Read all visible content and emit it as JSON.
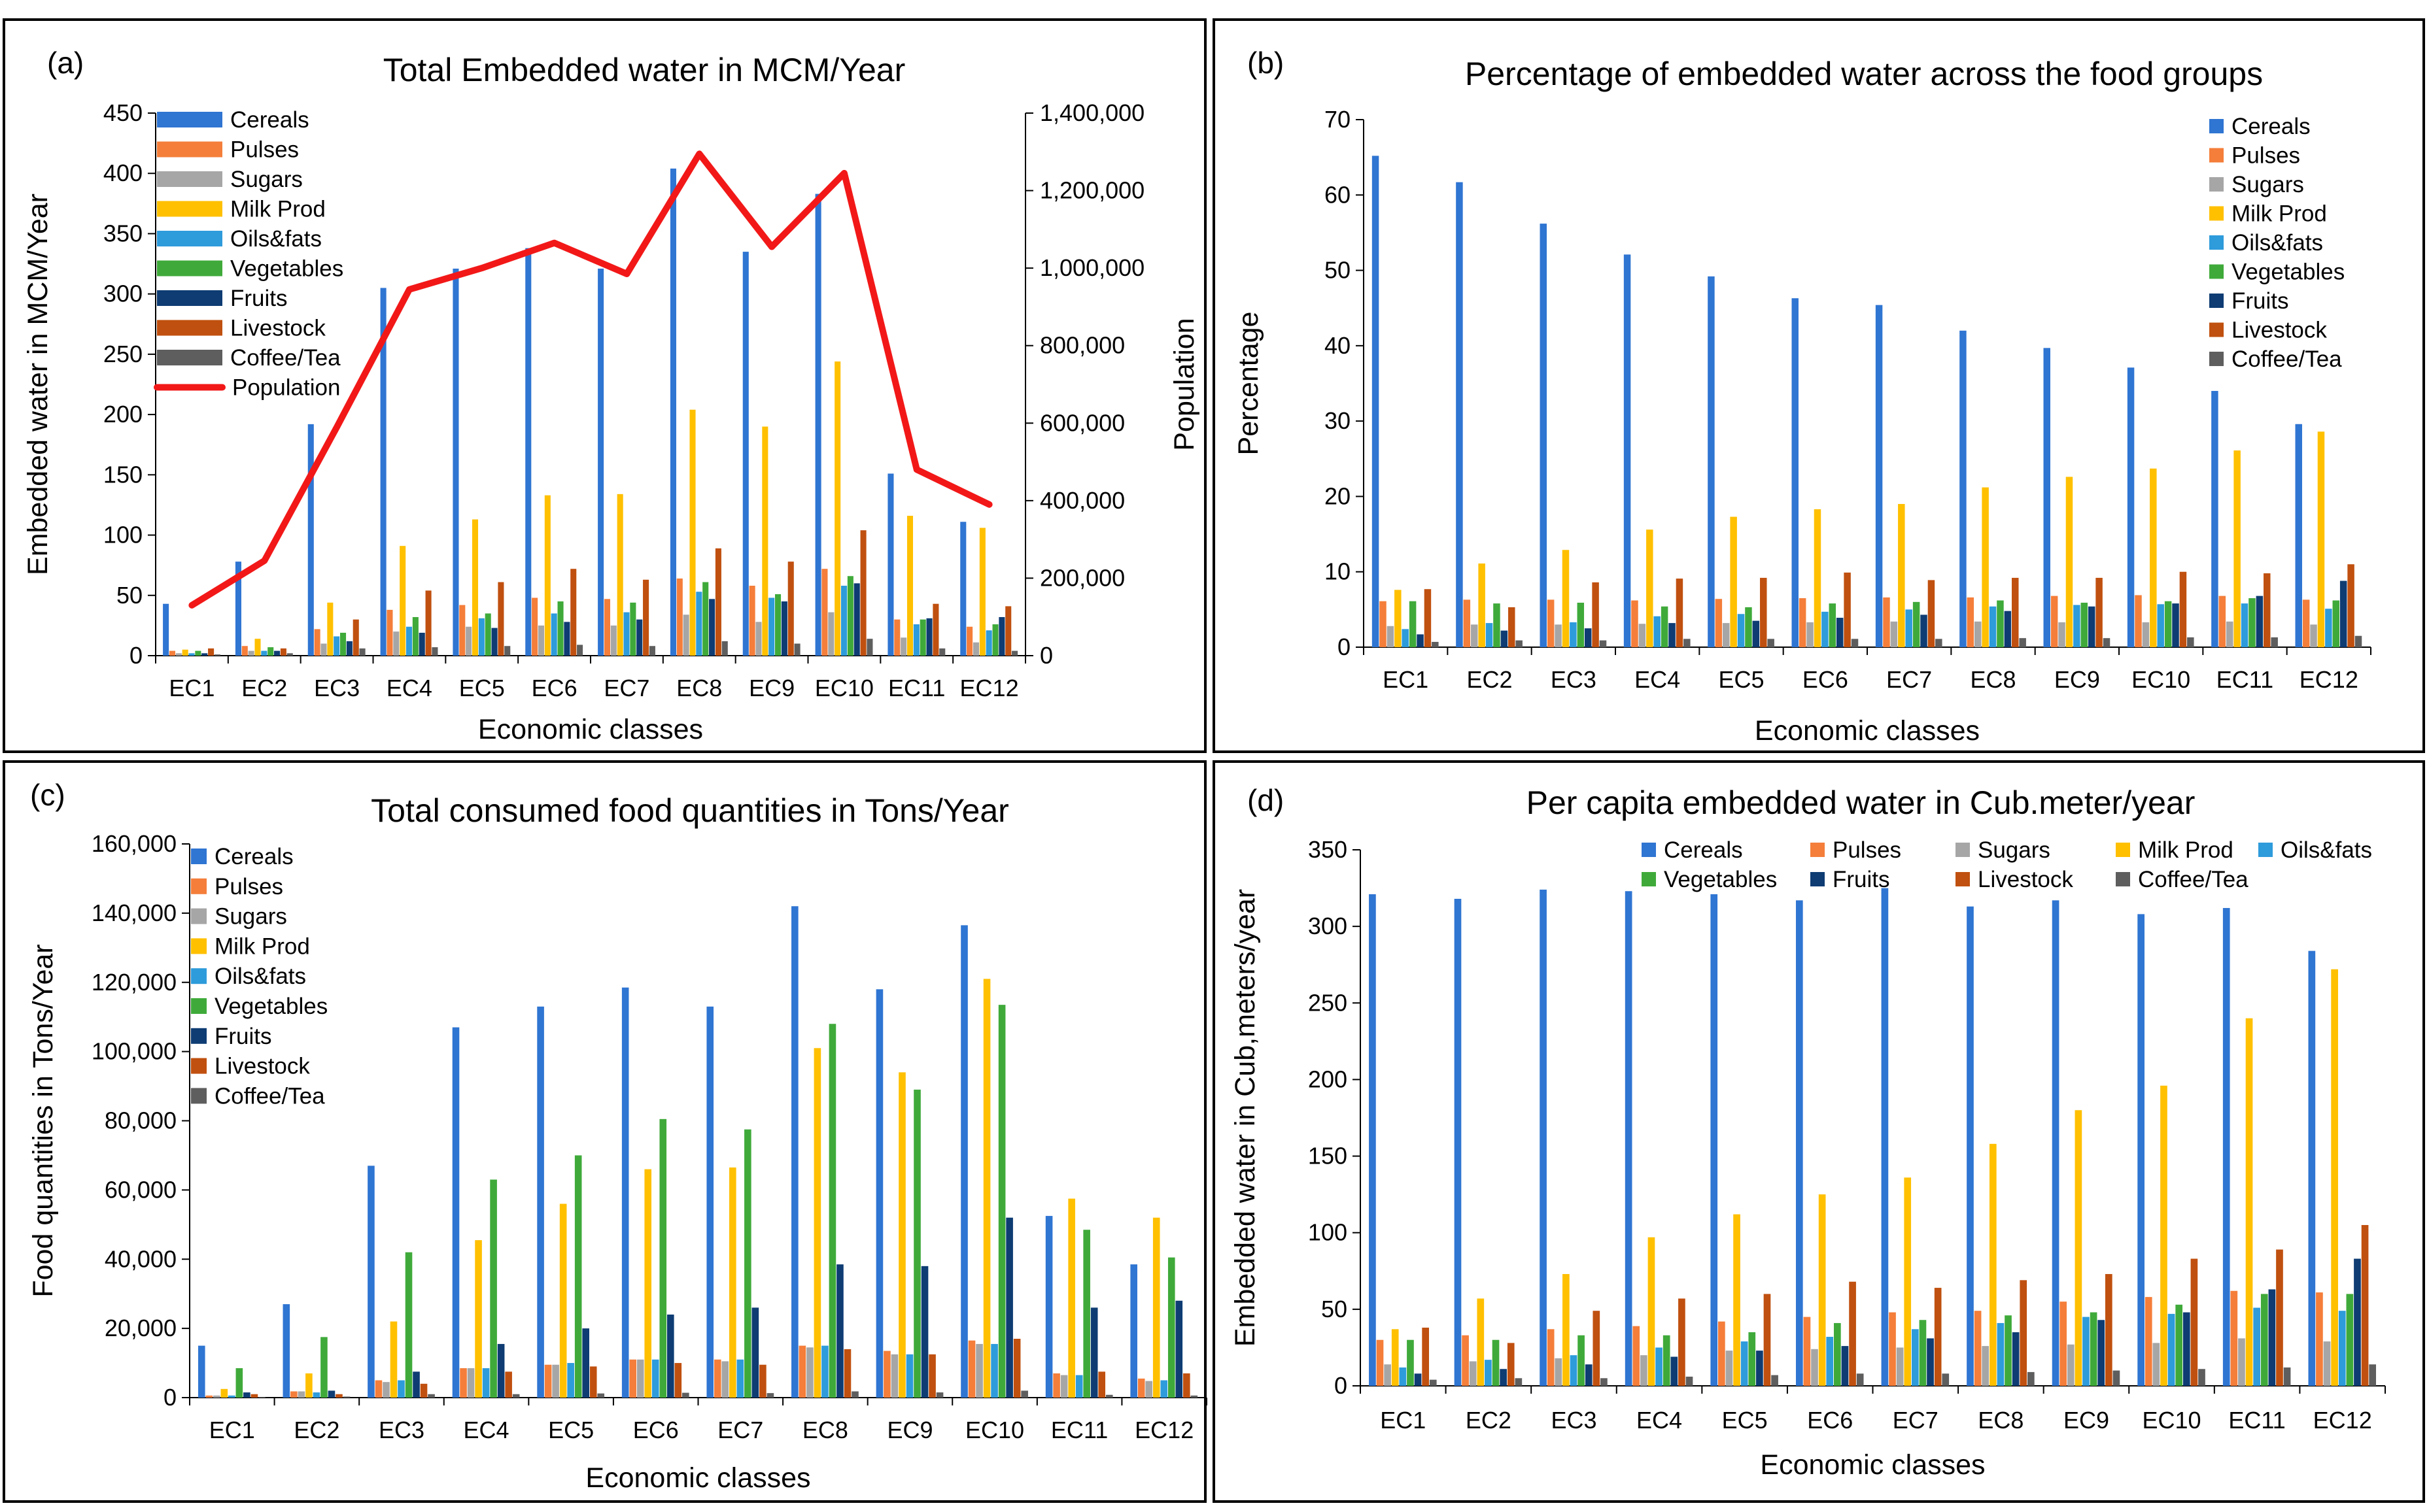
{
  "colors": {
    "Cereals": "#2F75D2",
    "Pulses": "#F47E3A",
    "Sugars": "#A6A6A6",
    "Milk Prod": "#FFC000",
    "Oils&fats": "#2E9BDB",
    "Vegetables": "#3FAA3A",
    "Fruits": "#0E3C73",
    "Livestock": "#C0500F",
    "Coffee/Tea": "#5E5E5E",
    "Population": "#F21818"
  },
  "chart_data": [
    {
      "id": "a",
      "panel_label": "(a)",
      "type": "bar+line",
      "title": "Total Embedded water in MCM/Year",
      "xlabel": "Economic classes",
      "ylabel": "Embedded water in MCM/Year",
      "y2label": "Population",
      "categories": [
        "EC1",
        "EC2",
        "EC3",
        "EC4",
        "EC5",
        "EC6",
        "EC7",
        "EC8",
        "EC9",
        "EC10",
        "EC11",
        "EC12"
      ],
      "ylim": [
        0,
        450
      ],
      "yticks": [
        "0",
        "50",
        "100",
        "150",
        "200",
        "250",
        "300",
        "350",
        "400",
        "450"
      ],
      "y2lim": [
        0,
        1400000
      ],
      "y2ticks": [
        "0",
        "200,000",
        "400,000",
        "600,000",
        "800,000",
        "1,000,000",
        "1,200,000",
        "1,400,000"
      ],
      "legend": [
        "Cereals",
        "Pulses",
        "Sugars",
        "Milk Prod",
        "Oils&fats",
        "Vegetables",
        "Fruits",
        "Livestock",
        "Coffee/Tea",
        "Population"
      ],
      "series": [
        {
          "name": "Cereals",
          "values": [
            43,
            78,
            192,
            305,
            321,
            338,
            321,
            404,
            335,
            383,
            151,
            111
          ]
        },
        {
          "name": "Pulses",
          "values": [
            4,
            8,
            22,
            38,
            42,
            48,
            47,
            64,
            58,
            72,
            30,
            24
          ]
        },
        {
          "name": "Sugars",
          "values": [
            2,
            4,
            10,
            20,
            24,
            25,
            25,
            34,
            28,
            36,
            15,
            11
          ]
        },
        {
          "name": "Milk Prod",
          "values": [
            5,
            14,
            44,
            91,
            113,
            133,
            134,
            204,
            190,
            244,
            116,
            106
          ]
        },
        {
          "name": "Oils&fats",
          "values": [
            2,
            4,
            16,
            24,
            31,
            35,
            36,
            53,
            48,
            58,
            26,
            21
          ]
        },
        {
          "name": "Vegetables",
          "values": [
            4,
            7,
            19,
            32,
            35,
            45,
            44,
            61,
            51,
            66,
            30,
            26
          ]
        },
        {
          "name": "Fruits",
          "values": [
            2,
            4,
            12,
            19,
            23,
            28,
            30,
            47,
            45,
            60,
            31,
            32
          ]
        },
        {
          "name": "Livestock",
          "values": [
            6,
            6,
            30,
            54,
            61,
            72,
            63,
            89,
            78,
            104,
            43,
            41
          ]
        },
        {
          "name": "Coffee/Tea",
          "values": [
            1,
            2,
            6,
            7,
            8,
            9,
            8,
            12,
            10,
            14,
            6,
            4
          ]
        }
      ],
      "line": {
        "name": "Population",
        "values": [
          130000,
          245000,
          590000,
          945000,
          1000000,
          1065000,
          985000,
          1295000,
          1055000,
          1245000,
          480000,
          390000
        ]
      }
    },
    {
      "id": "b",
      "panel_label": "(b)",
      "type": "bar",
      "title": "Percentage of embedded water across the food groups",
      "xlabel": "Economic classes",
      "ylabel": "Percentage",
      "categories": [
        "EC1",
        "EC2",
        "EC3",
        "EC4",
        "EC5",
        "EC6",
        "EC7",
        "EC8",
        "EC9",
        "EC10",
        "EC11",
        "EC12"
      ],
      "ylim": [
        0,
        70
      ],
      "yticks": [
        "0",
        "10",
        "20",
        "30",
        "40",
        "50",
        "60",
        "70"
      ],
      "legend": [
        "Cereals",
        "Pulses",
        "Sugars",
        "Milk Prod",
        "Oils&fats",
        "Vegetables",
        "Fruits",
        "Livestock",
        "Coffee/Tea"
      ],
      "series": [
        {
          "name": "Cereals",
          "values": [
            65.2,
            61.7,
            56.2,
            52.1,
            49.2,
            46.3,
            45.4,
            42.0,
            39.7,
            37.1,
            34.0,
            29.6
          ]
        },
        {
          "name": "Pulses",
          "values": [
            6.1,
            6.3,
            6.3,
            6.2,
            6.4,
            6.5,
            6.6,
            6.6,
            6.8,
            6.9,
            6.8,
            6.3
          ]
        },
        {
          "name": "Sugars",
          "values": [
            2.8,
            3.0,
            3.0,
            3.1,
            3.2,
            3.3,
            3.4,
            3.4,
            3.3,
            3.3,
            3.4,
            3.0
          ]
        },
        {
          "name": "Milk Prod",
          "values": [
            7.6,
            11.1,
            12.9,
            15.6,
            17.3,
            18.3,
            19.0,
            21.2,
            22.6,
            23.7,
            26.1,
            28.6
          ]
        },
        {
          "name": "Oils&fats",
          "values": [
            2.4,
            3.2,
            3.3,
            4.1,
            4.4,
            4.7,
            5.0,
            5.4,
            5.6,
            5.7,
            5.8,
            5.1
          ]
        },
        {
          "name": "Vegetables",
          "values": [
            6.1,
            5.8,
            5.9,
            5.4,
            5.3,
            5.8,
            6.0,
            6.2,
            5.9,
            6.1,
            6.5,
            6.2
          ]
        },
        {
          "name": "Fruits",
          "values": [
            1.7,
            2.2,
            2.5,
            3.2,
            3.5,
            3.9,
            4.3,
            4.8,
            5.4,
            5.8,
            6.8,
            8.8
          ]
        },
        {
          "name": "Livestock",
          "values": [
            7.7,
            5.3,
            8.6,
            9.1,
            9.2,
            9.9,
            8.9,
            9.2,
            9.2,
            10.0,
            9.8,
            11.0
          ]
        },
        {
          "name": "Coffee/Tea",
          "values": [
            0.7,
            0.9,
            0.9,
            1.1,
            1.1,
            1.1,
            1.1,
            1.2,
            1.2,
            1.3,
            1.3,
            1.5
          ]
        }
      ]
    },
    {
      "id": "c",
      "panel_label": "(c)",
      "type": "bar",
      "title": "Total consumed food quantities in Tons/Year",
      "xlabel": "Economic classes",
      "ylabel": "Food quantities in Tons/Year",
      "categories": [
        "EC1",
        "EC2",
        "EC3",
        "EC4",
        "EC5",
        "EC6",
        "EC7",
        "EC8",
        "EC9",
        "EC10",
        "EC11",
        "EC12"
      ],
      "ylim": [
        0,
        160000
      ],
      "yticks": [
        "0",
        "20,000",
        "40,000",
        "60,000",
        "80,000",
        "100,000",
        "120,000",
        "140,000",
        "160,000"
      ],
      "legend": [
        "Cereals",
        "Pulses",
        "Sugars",
        "Milk Prod",
        "Oils&fats",
        "Vegetables",
        "Fruits",
        "Livestock",
        "Coffee/Tea"
      ],
      "series": [
        {
          "name": "Cereals",
          "values": [
            15000,
            27000,
            67000,
            107000,
            113000,
            118500,
            113000,
            142000,
            118000,
            136500,
            52500,
            38500
          ]
        },
        {
          "name": "Pulses",
          "values": [
            600,
            1800,
            5000,
            8500,
            9500,
            11000,
            11000,
            15000,
            13500,
            16500,
            7000,
            5500
          ]
        },
        {
          "name": "Sugars",
          "values": [
            600,
            1800,
            4500,
            8500,
            9500,
            11000,
            10500,
            14500,
            12500,
            15500,
            6500,
            4800
          ]
        },
        {
          "name": "Milk Prod",
          "values": [
            2500,
            7000,
            22000,
            45500,
            56000,
            66000,
            66500,
            101000,
            94000,
            121000,
            57500,
            52000
          ]
        },
        {
          "name": "Oils&fats",
          "values": [
            600,
            1500,
            5000,
            8500,
            10000,
            11000,
            11000,
            15000,
            12500,
            15500,
            6500,
            5000
          ]
        },
        {
          "name": "Vegetables",
          "values": [
            8500,
            17500,
            42000,
            63000,
            70000,
            80500,
            77500,
            108000,
            89000,
            113500,
            48500,
            40500
          ]
        },
        {
          "name": "Fruits",
          "values": [
            1500,
            2000,
            7500,
            15500,
            20000,
            24000,
            26000,
            38500,
            38000,
            52000,
            26000,
            28000
          ]
        },
        {
          "name": "Livestock",
          "values": [
            1000,
            1000,
            4000,
            7500,
            9000,
            10000,
            9500,
            14000,
            12500,
            17000,
            7500,
            7000
          ]
        },
        {
          "name": "Coffee/Tea",
          "values": [
            200,
            300,
            1000,
            1000,
            1200,
            1400,
            1300,
            1800,
            1500,
            2000,
            800,
            600
          ]
        }
      ]
    },
    {
      "id": "d",
      "panel_label": "(d)",
      "type": "bar",
      "title": "Per capita embedded water in Cub.meter/year",
      "xlabel": "Economic classes",
      "ylabel": "Embedded water in Cub,meters/year",
      "categories": [
        "EC1",
        "EC2",
        "EC3",
        "EC4",
        "EC5",
        "EC6",
        "EC7",
        "EC8",
        "EC9",
        "EC10",
        "EC11",
        "EC12"
      ],
      "ylim": [
        0,
        350
      ],
      "yticks": [
        "0",
        "50",
        "100",
        "150",
        "200",
        "250",
        "300",
        "350"
      ],
      "legend": [
        "Cereals",
        "Pulses",
        "Sugars",
        "Milk Prod",
        "Oils&fats",
        "Vegetables",
        "Fruits",
        "Livestock",
        "Coffee/Tea"
      ],
      "series": [
        {
          "name": "Cereals",
          "values": [
            321,
            318,
            324,
            323,
            321,
            317,
            325,
            313,
            317,
            308,
            312,
            284
          ]
        },
        {
          "name": "Pulses",
          "values": [
            30,
            33,
            37,
            39,
            42,
            45,
            48,
            49,
            55,
            58,
            62,
            61
          ]
        },
        {
          "name": "Sugars",
          "values": [
            14,
            16,
            18,
            20,
            23,
            24,
            25,
            26,
            27,
            28,
            31,
            29
          ]
        },
        {
          "name": "Milk Prod",
          "values": [
            37,
            57,
            73,
            97,
            112,
            125,
            136,
            158,
            180,
            196,
            240,
            272
          ]
        },
        {
          "name": "Oils&fats",
          "values": [
            12,
            17,
            20,
            25,
            29,
            32,
            37,
            41,
            45,
            47,
            51,
            49
          ]
        },
        {
          "name": "Vegetables",
          "values": [
            30,
            30,
            33,
            33,
            35,
            41,
            43,
            46,
            48,
            53,
            60,
            60
          ]
        },
        {
          "name": "Fruits",
          "values": [
            8,
            11,
            14,
            19,
            23,
            26,
            31,
            35,
            43,
            48,
            63,
            83
          ]
        },
        {
          "name": "Livestock",
          "values": [
            38,
            28,
            49,
            57,
            60,
            68,
            64,
            69,
            73,
            83,
            89,
            105
          ]
        },
        {
          "name": "Coffee/Tea",
          "values": [
            4,
            5,
            5,
            6,
            7,
            8,
            8,
            9,
            10,
            11,
            12,
            14
          ]
        }
      ]
    }
  ]
}
